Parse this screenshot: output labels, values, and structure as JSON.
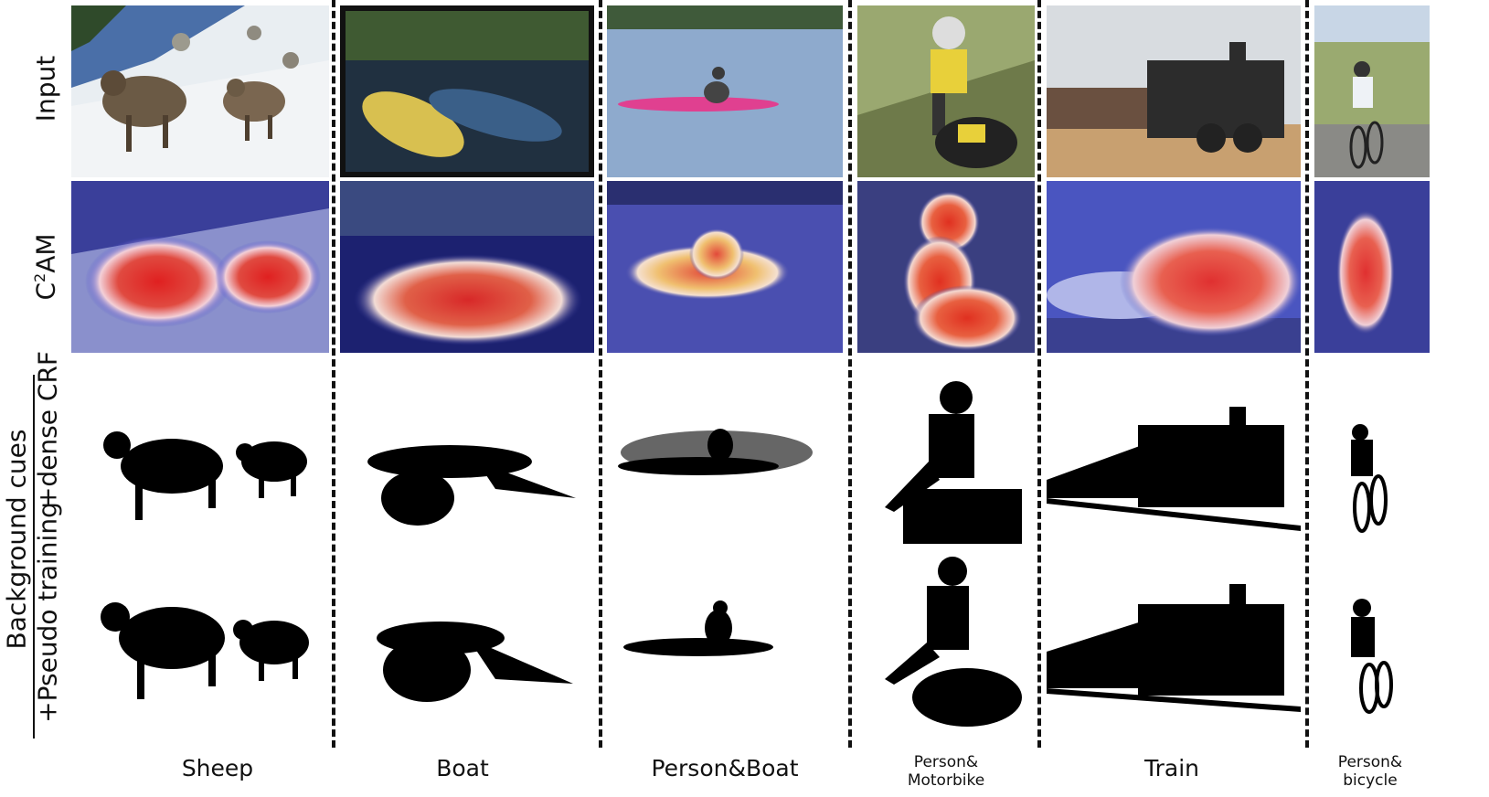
{
  "row_labels": {
    "input": "Input",
    "cam_prefix": "C",
    "cam_superscript": "2",
    "cam_suffix": "AM",
    "group": "Background cues",
    "crf": "+dense CRF",
    "pseudo": "+Pseudo training"
  },
  "columns": [
    {
      "label": "Sheep"
    },
    {
      "label": "Boat"
    },
    {
      "label": "Person&Boat"
    },
    {
      "label_line1": "Person&",
      "label_line2": "Motorbike"
    },
    {
      "label": "Train"
    },
    {
      "label_line1": "Person&",
      "label_line2": "bicycle"
    }
  ]
}
